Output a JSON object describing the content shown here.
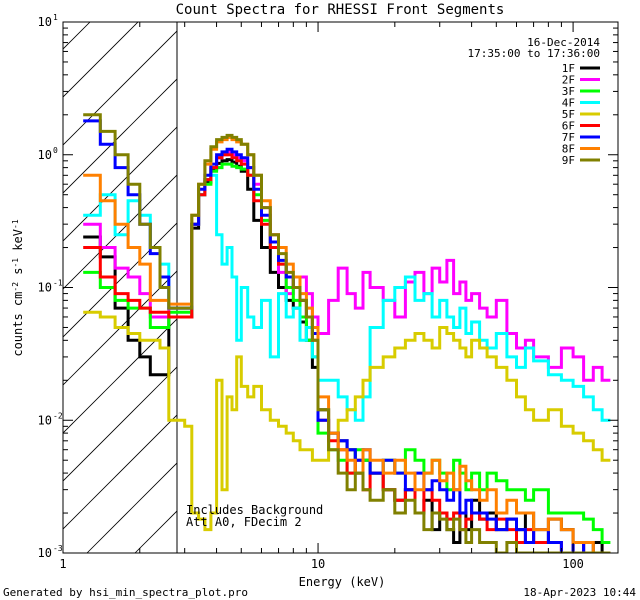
{
  "chart_data": {
    "type": "line",
    "style": "step",
    "title": "Count Spectra for RHESSI Front Segments",
    "xlabel": "Energy (keV)",
    "ylabel_parts": [
      "counts cm",
      "-2",
      " s",
      "-1",
      " keV",
      "-1"
    ],
    "x_scale": "log",
    "y_scale": "log",
    "xlim": [
      1,
      150
    ],
    "ylim": [
      0.001,
      10
    ],
    "x_ticks": [
      {
        "value": 1,
        "label": "1"
      },
      {
        "value": 10,
        "label": "10"
      },
      {
        "value": 100,
        "label": "100"
      }
    ],
    "y_ticks": [
      {
        "value": 0.001,
        "base": "10",
        "exp": "-3"
      },
      {
        "value": 0.01,
        "base": "10",
        "exp": "-2"
      },
      {
        "value": 0.1,
        "base": "10",
        "exp": "-1"
      },
      {
        "value": 1,
        "base": "10",
        "exp": "0"
      },
      {
        "value": 10,
        "base": "10",
        "exp": "1"
      }
    ],
    "shaded_region": {
      "from": 1,
      "to": 3,
      "pattern": "diagonal-hatch"
    },
    "date": "16-Dec-2014",
    "time_range": "17:35:00 to 17:36:00",
    "annotations": [
      "Includes Background",
      "Att A0, FDecim 2"
    ],
    "legend_position": "top-right",
    "energy_bins": [
      1.2,
      1.4,
      1.6,
      1.8,
      2.0,
      2.2,
      2.4,
      2.6,
      2.8,
      3.0,
      3.2,
      3.4,
      3.6,
      3.8,
      4.0,
      4.2,
      4.4,
      4.6,
      4.8,
      5.0,
      5.3,
      5.6,
      6.0,
      6.5,
      7.0,
      7.5,
      8.0,
      8.5,
      9.0,
      9.5,
      10,
      11,
      12,
      13,
      14,
      15,
      16,
      18,
      20,
      22,
      24,
      26,
      28,
      30,
      32,
      34,
      36,
      38,
      40,
      43,
      46,
      50,
      55,
      60,
      65,
      70,
      80,
      90,
      100,
      110,
      120,
      130,
      140
    ],
    "series": [
      {
        "name": "1F",
        "color": "#000000",
        "values": [
          0.24,
          0.17,
          0.07,
          0.04,
          0.03,
          0.022,
          0.022,
          0.06,
          0.06,
          0.06,
          0.28,
          0.5,
          0.62,
          0.78,
          0.86,
          0.9,
          0.92,
          0.88,
          0.82,
          0.75,
          0.55,
          0.32,
          0.2,
          0.13,
          0.1,
          0.08,
          0.07,
          0.055,
          0.04,
          0.025,
          0.012,
          0.008,
          0.007,
          0.006,
          0.004,
          0.005,
          0.004,
          0.003,
          0.0025,
          0.003,
          0.002,
          0.0025,
          0.0015,
          0.002,
          0.0015,
          0.0012,
          0.002,
          0.0015,
          0.0025,
          0.0018,
          0.002,
          0.0015,
          0.0018,
          0.0015,
          0.002,
          0.0012,
          0.0018,
          0.0015,
          0.0012,
          0.001,
          0.0012,
          0.001
        ]
      },
      {
        "name": "2F",
        "color": "#ff00ff",
        "values": [
          0.3,
          0.2,
          0.14,
          0.12,
          0.09,
          0.06,
          0.06,
          0.07,
          0.07,
          0.07,
          0.3,
          0.5,
          0.65,
          0.8,
          0.95,
          1.0,
          1.05,
          1.0,
          0.95,
          0.9,
          0.8,
          0.6,
          0.4,
          0.25,
          0.13,
          0.09,
          0.1,
          0.12,
          0.09,
          0.06,
          0.045,
          0.08,
          0.14,
          0.09,
          0.07,
          0.13,
          0.1,
          0.08,
          0.06,
          0.11,
          0.13,
          0.09,
          0.14,
          0.11,
          0.16,
          0.09,
          0.11,
          0.08,
          0.09,
          0.07,
          0.06,
          0.08,
          0.045,
          0.035,
          0.04,
          0.03,
          0.025,
          0.035,
          0.03,
          0.02,
          0.025,
          0.02
        ]
      },
      {
        "name": "3F",
        "color": "#00ff00",
        "values": [
          0.13,
          0.1,
          0.08,
          0.07,
          0.07,
          0.05,
          0.05,
          0.065,
          0.065,
          0.065,
          0.3,
          0.5,
          0.6,
          0.75,
          0.8,
          0.85,
          0.85,
          0.82,
          0.8,
          0.78,
          0.7,
          0.5,
          0.32,
          0.2,
          0.15,
          0.1,
          0.08,
          0.06,
          0.04,
          0.03,
          0.008,
          0.006,
          0.005,
          0.004,
          0.006,
          0.005,
          0.004,
          0.005,
          0.004,
          0.006,
          0.005,
          0.004,
          0.005,
          0.004,
          0.003,
          0.005,
          0.004,
          0.003,
          0.004,
          0.003,
          0.004,
          0.0035,
          0.003,
          0.003,
          0.0025,
          0.003,
          0.002,
          0.002,
          0.002,
          0.0018,
          0.0015,
          0.0012
        ]
      },
      {
        "name": "4F",
        "color": "#00ffff",
        "values": [
          0.35,
          0.5,
          0.25,
          0.45,
          0.35,
          0.2,
          0.15,
          0.07,
          0.07,
          0.07,
          0.3,
          0.5,
          0.65,
          0.7,
          0.25,
          0.15,
          0.2,
          0.12,
          0.04,
          0.1,
          0.06,
          0.05,
          0.08,
          0.03,
          0.09,
          0.06,
          0.07,
          0.04,
          0.05,
          0.03,
          0.02,
          0.02,
          0.015,
          0.012,
          0.01,
          0.015,
          0.05,
          0.08,
          0.1,
          0.12,
          0.08,
          0.09,
          0.06,
          0.08,
          0.06,
          0.05,
          0.07,
          0.045,
          0.055,
          0.04,
          0.035,
          0.045,
          0.03,
          0.025,
          0.035,
          0.028,
          0.022,
          0.02,
          0.018,
          0.015,
          0.012,
          0.01
        ]
      },
      {
        "name": "5F",
        "color": "#d8cc00",
        "values": [
          0.065,
          0.06,
          0.05,
          0.045,
          0.04,
          0.04,
          0.035,
          0.01,
          0.01,
          0.009,
          0.002,
          0.0018,
          0.0015,
          0.002,
          0.02,
          0.003,
          0.015,
          0.012,
          0.03,
          0.018,
          0.015,
          0.018,
          0.012,
          0.01,
          0.009,
          0.008,
          0.007,
          0.006,
          0.006,
          0.005,
          0.005,
          0.008,
          0.01,
          0.012,
          0.015,
          0.02,
          0.025,
          0.03,
          0.035,
          0.04,
          0.045,
          0.04,
          0.035,
          0.05,
          0.045,
          0.04,
          0.035,
          0.03,
          0.04,
          0.035,
          0.03,
          0.025,
          0.02,
          0.015,
          0.012,
          0.01,
          0.012,
          0.009,
          0.008,
          0.007,
          0.006,
          0.005
        ]
      },
      {
        "name": "6F",
        "color": "#ff0000",
        "values": [
          0.2,
          0.12,
          0.09,
          0.08,
          0.07,
          0.065,
          0.065,
          0.06,
          0.06,
          0.06,
          0.3,
          0.5,
          0.65,
          0.8,
          0.95,
          1.0,
          1.0,
          0.95,
          0.9,
          0.85,
          0.7,
          0.45,
          0.3,
          0.2,
          0.15,
          0.12,
          0.1,
          0.08,
          0.06,
          0.04,
          0.01,
          0.007,
          0.006,
          0.004,
          0.005,
          0.003,
          0.004,
          0.003,
          0.0025,
          0.003,
          0.002,
          0.003,
          0.0025,
          0.002,
          0.0018,
          0.002,
          0.0015,
          0.0018,
          0.002,
          0.0018,
          0.0015,
          0.0018,
          0.0015,
          0.0012,
          0.0015,
          0.0012,
          0.0012,
          0.001,
          0.0012,
          0.001,
          0.001,
          0.001
        ]
      },
      {
        "name": "7F",
        "color": "#0000ff",
        "values": [
          1.8,
          1.2,
          0.8,
          0.5,
          0.3,
          0.18,
          0.12,
          0.07,
          0.07,
          0.07,
          0.3,
          0.55,
          0.7,
          0.85,
          1.0,
          1.05,
          1.1,
          1.05,
          1.0,
          0.95,
          0.8,
          0.55,
          0.35,
          0.22,
          0.16,
          0.12,
          0.1,
          0.08,
          0.06,
          0.045,
          0.01,
          0.008,
          0.007,
          0.006,
          0.005,
          0.006,
          0.004,
          0.005,
          0.004,
          0.003,
          0.004,
          0.003,
          0.0035,
          0.003,
          0.0025,
          0.003,
          0.002,
          0.0025,
          0.002,
          0.002,
          0.0018,
          0.0015,
          0.0018,
          0.0015,
          0.0012,
          0.0015,
          0.0012,
          0.001,
          0.0012,
          0.001,
          0.001,
          0.001
        ]
      },
      {
        "name": "8F",
        "color": "#ff8000",
        "values": [
          0.7,
          0.45,
          0.3,
          0.2,
          0.15,
          0.08,
          0.08,
          0.075,
          0.075,
          0.075,
          0.35,
          0.6,
          0.85,
          1.1,
          1.25,
          1.3,
          1.35,
          1.3,
          1.25,
          1.2,
          1.0,
          0.7,
          0.45,
          0.25,
          0.2,
          0.15,
          0.12,
          0.09,
          0.07,
          0.05,
          0.015,
          0.008,
          0.006,
          0.005,
          0.004,
          0.006,
          0.005,
          0.004,
          0.005,
          0.004,
          0.003,
          0.004,
          0.005,
          0.0035,
          0.004,
          0.003,
          0.0045,
          0.0035,
          0.003,
          0.0025,
          0.003,
          0.002,
          0.0025,
          0.002,
          0.002,
          0.0015,
          0.0018,
          0.0015,
          0.0012,
          0.0012,
          0.001,
          0.001
        ]
      },
      {
        "name": "9F",
        "color": "#808000",
        "values": [
          2.0,
          1.5,
          1.0,
          0.6,
          0.3,
          0.2,
          0.1,
          0.07,
          0.07,
          0.07,
          0.35,
          0.6,
          0.9,
          1.15,
          1.3,
          1.35,
          1.4,
          1.35,
          1.3,
          1.2,
          1.0,
          0.7,
          0.4,
          0.25,
          0.18,
          0.13,
          0.1,
          0.08,
          0.06,
          0.04,
          0.012,
          0.006,
          0.004,
          0.003,
          0.004,
          0.003,
          0.0025,
          0.003,
          0.002,
          0.0025,
          0.002,
          0.0015,
          0.002,
          0.0018,
          0.0015,
          0.0018,
          0.0015,
          0.0012,
          0.0015,
          0.0012,
          0.0012,
          0.001,
          0.0012,
          0.001,
          0.001,
          0.001,
          0.001,
          0.001,
          0.001,
          0.001,
          0.001,
          0.001
        ]
      }
    ]
  },
  "footer": {
    "generated_by": "Generated by hsi_min_spectra_plot.pro",
    "timestamp": "18-Apr-2023 10:44"
  }
}
